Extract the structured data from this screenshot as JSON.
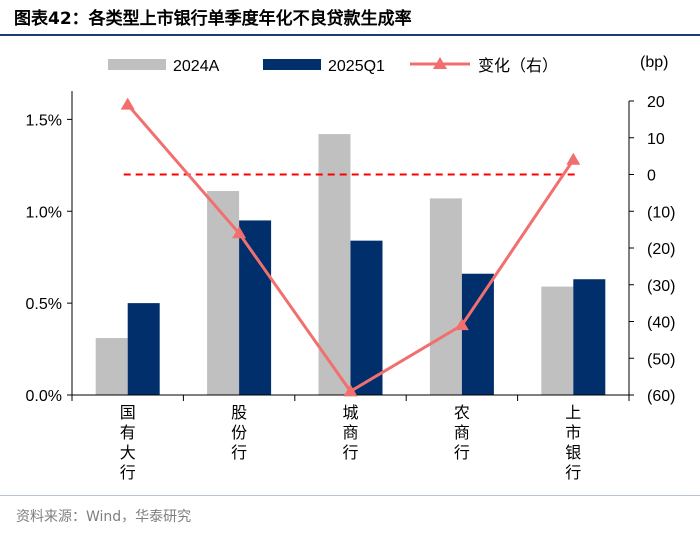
{
  "header": {
    "title": "图表42：各类型上市银行单季度年化不良贷款生成率"
  },
  "footer": {
    "source": "资料来源：Wind，华泰研究"
  },
  "chart_data": {
    "type": "bar",
    "categories": [
      "国有大行",
      "股份行",
      "城商行",
      "农商行",
      "上市银行"
    ],
    "series": [
      {
        "name": "2024A",
        "axis": "left",
        "kind": "bar",
        "color": "#c0c0c0",
        "values": [
          0.31,
          1.11,
          1.42,
          1.07,
          0.59
        ]
      },
      {
        "name": "2025Q1",
        "axis": "left",
        "kind": "bar",
        "color": "#002f6c",
        "values": [
          0.5,
          0.95,
          0.84,
          0.66,
          0.63
        ]
      },
      {
        "name": "变化（右）",
        "axis": "right",
        "kind": "line",
        "marker": "triangle",
        "color": "#f26f6f",
        "values": [
          19,
          -16,
          -59,
          -41,
          4
        ]
      }
    ],
    "left_axis": {
      "ylim": [
        0,
        1.6
      ],
      "ticks": [
        0,
        0.5,
        1.0,
        1.5
      ],
      "tick_labels": [
        "0.0%",
        "0.5%",
        "1.0%",
        "1.5%"
      ]
    },
    "right_axis": {
      "unit": "(bp)",
      "ylim": [
        -60,
        20
      ],
      "ticks": [
        20,
        10,
        0,
        -10,
        -20,
        -30,
        -40,
        -50,
        -60
      ],
      "tick_labels": [
        "20",
        "10",
        "0",
        "(10)",
        "(20)",
        "(30)",
        "(40)",
        "(50)",
        "(60)"
      ]
    },
    "reference_line": {
      "axis": "right",
      "value": 0,
      "style": "dashed",
      "color": "#ff0000"
    },
    "legend_position": "top",
    "grid": false
  }
}
